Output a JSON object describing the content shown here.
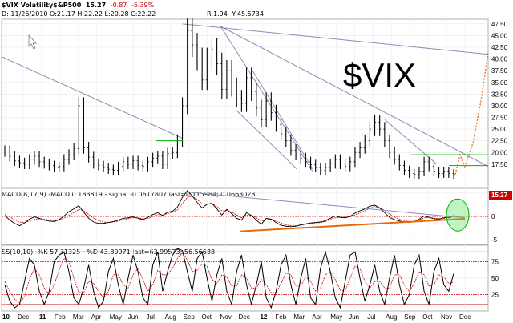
{
  "header": {
    "symbol": "$VIX Volatility$&P500",
    "last": "15.27",
    "change": "-0.87",
    "change_pct": "-5.39%",
    "date_line": "D: 11/26/2010 O:21.17 H:22.22 L:20.28 C:22.22",
    "r_value": "R:1.94",
    "readout": "Y:45.5734"
  },
  "annotation": "$VIX",
  "last_price_label": "15.27",
  "macd": {
    "label": "MACD(8,17,9)",
    "value": "-MACD 0.183819",
    "signal": "- signal -0.0617807",
    "last": "last=0.115984;",
    "hist": "0.0663023"
  },
  "stoch": {
    "label": "SS(10,10)",
    "k": "-%K 57.31325",
    "d": "- %D 43.80971",
    "last": "last=63.99573;",
    "d2": "56.56688"
  },
  "colors": {
    "price": "#000000",
    "trendline": "#8c8cb4",
    "green": "#00b000",
    "orange": "#e86a10",
    "red": "#d00000",
    "last_price_bg": "#d00000"
  },
  "chart_data": [
    {
      "type": "line",
      "title": "$VIX Volatility$&P500",
      "x_ticks": [
        "10",
        "Dec",
        "11",
        "Feb",
        "Mar",
        "Apr",
        "May",
        "Jun",
        "Jul",
        "Aug",
        "Sep",
        "Oct",
        "Nov",
        "Dec",
        "12",
        "Feb",
        "Mar",
        "Apr",
        "May",
        "Jun",
        "Jul",
        "Aug",
        "Sep",
        "Oct",
        "Nov",
        "Dec"
      ],
      "y_ticks": [
        17.5,
        20.0,
        22.5,
        25.0,
        27.5,
        30.0,
        32.5,
        35.0,
        37.5,
        40.0,
        42.5,
        45.0,
        47.5
      ],
      "ylim": [
        12.5,
        48.5
      ],
      "series": [
        {
          "values": [
            20.3,
            19.2,
            18.2,
            17.8,
            17.5,
            18.5,
            19.2,
            18.0,
            17.6,
            17.2,
            16.9,
            17.0,
            18.5,
            19.5,
            20.8,
            30.0,
            21.0,
            19.0,
            17.6,
            17.2,
            16.8,
            16.4,
            16.2,
            17.0,
            18.0,
            17.5,
            18.2,
            17.2,
            17.0,
            18.0,
            18.8,
            19.2,
            17.5,
            19.8,
            20.0,
            22.5,
            30.0,
            46.0,
            43.0,
            40.0,
            35.5,
            40.0,
            42.0,
            39.0,
            33.5,
            37.5,
            34.0,
            31.5,
            30.5,
            36.0,
            33.0,
            29.5,
            27.0,
            31.0,
            28.5,
            26.0,
            24.0,
            22.5,
            20.5,
            19.5,
            18.8,
            18.0,
            17.4,
            16.8,
            16.2,
            16.8,
            17.6,
            18.5,
            17.5,
            17.0,
            18.0,
            20.0,
            21.0,
            22.5,
            25.0,
            26.5,
            25.0,
            22.5,
            20.0,
            18.5,
            17.2,
            16.2,
            15.5,
            15.3,
            16.0,
            18.0,
            17.0,
            16.0,
            15.5,
            16.0,
            15.5,
            15.27
          ]
        }
      ],
      "horizontal_levels": [
        22.5,
        19.5,
        17.2
      ],
      "last_value": 15.27
    },
    {
      "type": "line",
      "title": "MACD(8,17,9)",
      "y_ticks": [
        -5,
        0,
        5
      ],
      "ylim": [
        -6,
        6
      ],
      "series": [
        {
          "name": "MACD",
          "values": [
            0.2,
            -0.8,
            -1.5,
            -2.0,
            -1.4,
            -0.6,
            -0.1,
            -0.4,
            -0.8,
            -1.0,
            -1.1,
            -0.7,
            0.1,
            1.0,
            1.6,
            2.3,
            0.9,
            -0.4,
            -1.2,
            -1.5,
            -1.5,
            -1.3,
            -1.1,
            -0.8,
            -0.4,
            -0.3,
            -0.1,
            -0.4,
            -0.7,
            -0.2,
            0.4,
            0.8,
            0.2,
            0.9,
            1.1,
            2.0,
            4.1,
            5.5,
            4.4,
            3.0,
            1.8,
            2.6,
            2.8,
            1.6,
            0.3,
            1.5,
            0.6,
            -0.4,
            -0.8,
            0.8,
            0.2,
            -0.8,
            -1.7,
            -0.4,
            -0.6,
            -1.3,
            -1.9,
            -2.1,
            -2.2,
            -2.1,
            -1.8,
            -1.6,
            -1.4,
            -1.3,
            -1.2,
            -0.9,
            -0.4,
            0.1,
            -0.2,
            -0.3,
            0.0,
            0.7,
            1.2,
            1.6,
            2.2,
            2.4,
            1.8,
            0.8,
            -0.2,
            -0.7,
            -1.0,
            -1.2,
            -1.3,
            -1.1,
            -0.6,
            0.1,
            -0.2,
            -0.5,
            -0.6,
            -0.3,
            -0.2,
            0.18
          ]
        },
        {
          "name": "signal",
          "values": [
            0.4,
            -0.1,
            -0.7,
            -1.2,
            -1.3,
            -1.0,
            -0.6,
            -0.5,
            -0.6,
            -0.8,
            -0.9,
            -0.8,
            -0.4,
            0.2,
            0.8,
            1.5,
            1.2,
            0.4,
            -0.4,
            -0.9,
            -1.2,
            -1.3,
            -1.2,
            -1.0,
            -0.7,
            -0.5,
            -0.3,
            -0.3,
            -0.5,
            -0.4,
            -0.0,
            0.4,
            0.3,
            0.6,
            0.9,
            1.4,
            2.7,
            4.1,
            4.3,
            3.6,
            2.7,
            2.6,
            2.7,
            2.1,
            1.2,
            1.3,
            0.9,
            0.3,
            -0.3,
            0.3,
            0.2,
            -0.3,
            -1.0,
            -0.7,
            -0.6,
            -1.0,
            -1.4,
            -1.8,
            -2.0,
            -2.0,
            -1.9,
            -1.7,
            -1.5,
            -1.4,
            -1.3,
            -1.1,
            -0.7,
            -0.3,
            -0.2,
            -0.2,
            -0.1,
            0.3,
            0.8,
            1.2,
            1.7,
            2.1,
            1.9,
            1.3,
            0.5,
            -0.1,
            -0.6,
            -0.9,
            -1.1,
            -1.1,
            -0.8,
            -0.3,
            -0.2,
            -0.4,
            -0.5,
            -0.4,
            -0.3,
            -0.06
          ]
        }
      ]
    },
    {
      "type": "line",
      "title": "SS(10,10)",
      "y_ticks": [
        25,
        50,
        75
      ],
      "ylim": [
        0,
        100
      ],
      "series": [
        {
          "name": "%K",
          "values": [
            40,
            15,
            5,
            10,
            45,
            80,
            70,
            30,
            10,
            30,
            75,
            85,
            90,
            60,
            20,
            10,
            35,
            70,
            30,
            5,
            15,
            60,
            80,
            40,
            10,
            50,
            85,
            60,
            20,
            10,
            70,
            90,
            30,
            60,
            85,
            95,
            92,
            60,
            30,
            80,
            90,
            50,
            15,
            55,
            80,
            30,
            10,
            60,
            85,
            40,
            10,
            40,
            75,
            20,
            5,
            30,
            70,
            85,
            40,
            10,
            50,
            80,
            20,
            10,
            65,
            90,
            60,
            20,
            5,
            45,
            85,
            90,
            50,
            15,
            40,
            70,
            30,
            10,
            50,
            85,
            40,
            10,
            25,
            70,
            85,
            30,
            10,
            60,
            80,
            40,
            30,
            57
          ]
        },
        {
          "name": "%D",
          "values": [
            45,
            30,
            18,
            12,
            22,
            48,
            65,
            55,
            35,
            25,
            40,
            62,
            80,
            75,
            50,
            28,
            28,
            45,
            42,
            30,
            20,
            30,
            55,
            55,
            40,
            35,
            55,
            65,
            48,
            30,
            40,
            62,
            55,
            55,
            65,
            80,
            88,
            78,
            60,
            62,
            72,
            68,
            48,
            42,
            55,
            52,
            38,
            38,
            55,
            50,
            35,
            35,
            48,
            40,
            28,
            28,
            42,
            58,
            55,
            38,
            38,
            52,
            45,
            30,
            35,
            55,
            60,
            48,
            32,
            30,
            50,
            68,
            65,
            45,
            35,
            45,
            45,
            35,
            35,
            55,
            55,
            40,
            30,
            42,
            60,
            55,
            38,
            40,
            55,
            52,
            42,
            44
          ]
        }
      ]
    }
  ]
}
